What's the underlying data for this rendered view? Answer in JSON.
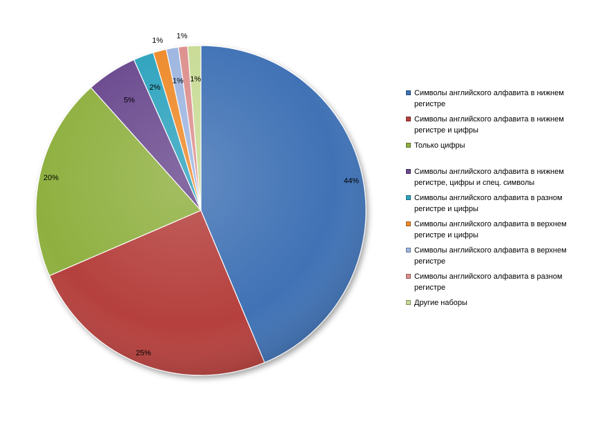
{
  "chart_data": {
    "type": "pie",
    "title": "",
    "legend_position": "right",
    "slices": [
      {
        "name": "Символы английского алфавита  в нижнем регистре",
        "value": 44,
        "label": "44%",
        "color": "#3F72B5"
      },
      {
        "name": "Символы английского алфавита  в нижнем регистре и цифры",
        "value": 25,
        "label": "25%",
        "color": "#B5403D"
      },
      {
        "name": "Только цифры",
        "value": 20,
        "label": "20%",
        "color": "#8FB040"
      },
      {
        "name": "Символы английского алфавита  в нижнем регистре,  цифры и спец. символы",
        "value": 5,
        "label": "5%",
        "color": "#6A4A8E"
      },
      {
        "name": "Символы английского алфавита  в разном регистре и цифры",
        "value": 2,
        "label": "2%",
        "color": "#2FA3BE"
      },
      {
        "name": "Символы английского алфавита  в верхнем регистре и цифры",
        "value": 1.3,
        "label": "1%",
        "color": "#EE8A2A"
      },
      {
        "name": "Символы английского алфавита  в верхнем регистре",
        "value": 1.2,
        "label": "1%",
        "color": "#9DB5E0"
      },
      {
        "name": "Символы английского алфавита  в разном регистре",
        "value": 0.9,
        "label": "1%",
        "color": "#DD8F8C"
      },
      {
        "name": "Другие наборы",
        "value": 1.3,
        "label": "1%",
        "color": "#C8DB95"
      }
    ]
  }
}
